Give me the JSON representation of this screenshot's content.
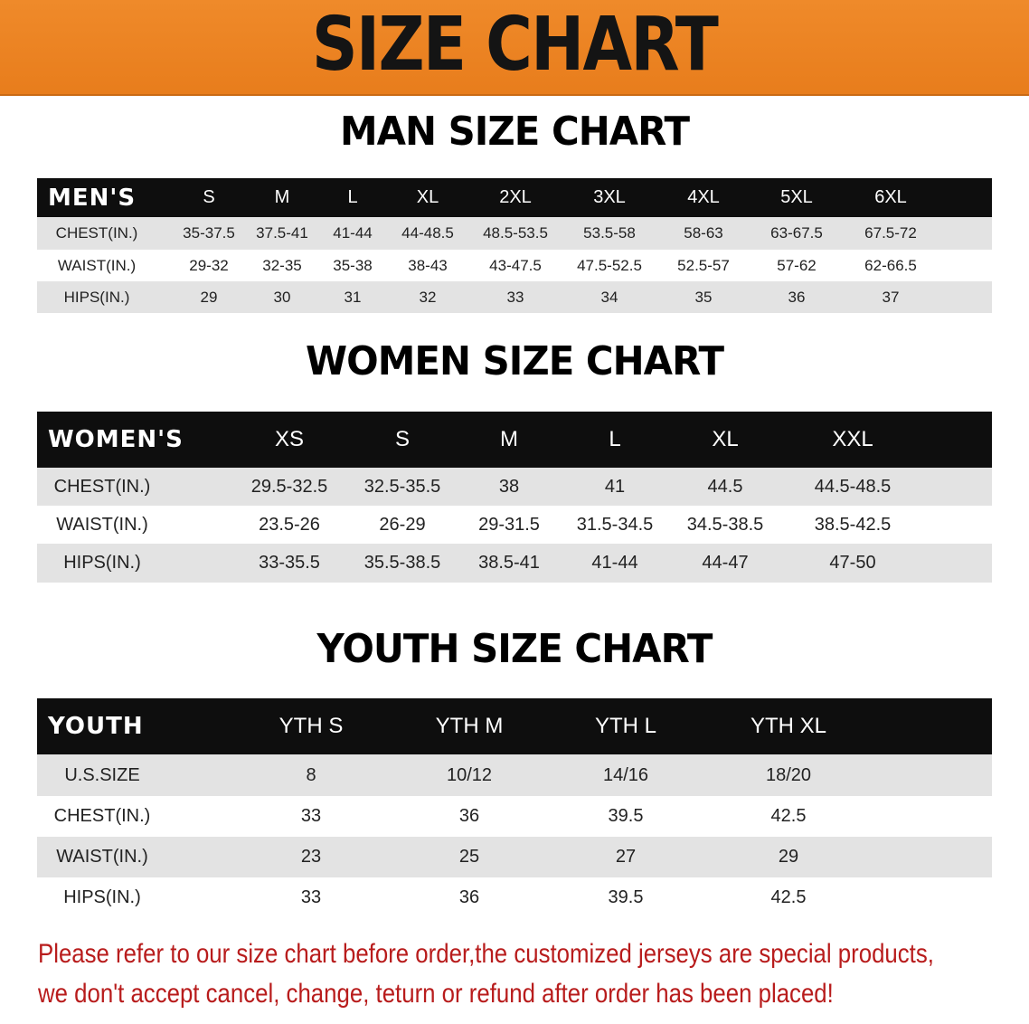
{
  "banner": {
    "title": "SIZE CHART",
    "color": "#ec8424"
  },
  "men": {
    "title": "MAN SIZE CHART",
    "header": [
      "MEN'S",
      "S",
      "M",
      "L",
      "XL",
      "2XL",
      "3XL",
      "4XL",
      "5XL",
      "6XL"
    ],
    "rows": [
      [
        "CHEST(IN.)",
        "35-37.5",
        "37.5-41",
        "41-44",
        "44-48.5",
        "48.5-53.5",
        "53.5-58",
        "58-63",
        "63-67.5",
        "67.5-72"
      ],
      [
        "WAIST(IN.)",
        "29-32",
        "32-35",
        "35-38",
        "38-43",
        "43-47.5",
        "47.5-52.5",
        "52.5-57",
        "57-62",
        "62-66.5"
      ],
      [
        "HIPS(IN.)",
        "29",
        "30",
        "31",
        "32",
        "33",
        "34",
        "35",
        "36",
        "37"
      ]
    ]
  },
  "women": {
    "title": "WOMEN SIZE CHART",
    "header": [
      "WOMEN'S",
      "XS",
      "S",
      "M",
      "L",
      "XL",
      "XXL"
    ],
    "rows": [
      [
        "CHEST(IN.)",
        "29.5-32.5",
        "32.5-35.5",
        "38",
        "41",
        "44.5",
        "44.5-48.5"
      ],
      [
        "WAIST(IN.)",
        "23.5-26",
        "26-29",
        "29-31.5",
        "31.5-34.5",
        "34.5-38.5",
        "38.5-42.5"
      ],
      [
        "HIPS(IN.)",
        "33-35.5",
        "35.5-38.5",
        "38.5-41",
        "41-44",
        "44-47",
        "47-50"
      ]
    ]
  },
  "youth": {
    "title": "YOUTH SIZE CHART",
    "header": [
      "YOUTH",
      "YTH S",
      "YTH M",
      "YTH L",
      "YTH XL"
    ],
    "rows": [
      [
        "U.S.SIZE",
        "8",
        "10/12",
        "14/16",
        "18/20"
      ],
      [
        "CHEST(IN.)",
        "33",
        "36",
        "39.5",
        "42.5"
      ],
      [
        "WAIST(IN.)",
        "23",
        "25",
        "27",
        "29"
      ],
      [
        "HIPS(IN.)",
        "33",
        "36",
        "39.5",
        "42.5"
      ]
    ]
  },
  "notice": {
    "line1": "Please refer to our size chart before order,the customized jerseys are special products,",
    "line2": "we don't accept cancel, change, teturn or refund after order has been placed!",
    "color": "#b81c1c"
  }
}
